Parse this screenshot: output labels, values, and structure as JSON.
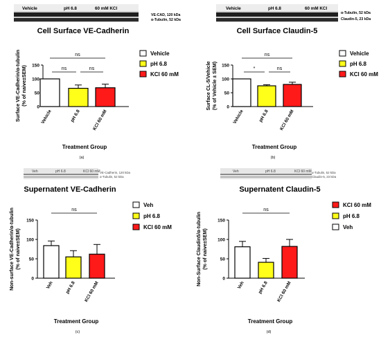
{
  "colors": {
    "vehicle": "#ffffff",
    "ph": "#ffff1a",
    "kcl": "#ff1a1a"
  },
  "chart_data": [
    {
      "type": "bar",
      "panel": "(a)",
      "title": "Cell Surface VE-Cadherin",
      "ylabel_line1": "Surface VE-Cadherin/α-tubulin",
      "ylabel_line2": "(% of naive±SEM)",
      "xlabel": "Treatment Group",
      "categories": [
        "Vehicle",
        "pH 6.8",
        "KCl 60 mM"
      ],
      "values": [
        100,
        66,
        68
      ],
      "errors": [
        0,
        12,
        13
      ],
      "color_keys": [
        "vehicle",
        "ph",
        "kcl"
      ],
      "ylim": [
        0,
        150
      ],
      "yticks": [
        "0",
        "50",
        "100",
        "150"
      ],
      "legend": [
        "Vehicle",
        "pH 6.8",
        "KCl 60 mM"
      ],
      "legend_keys": [
        "vehicle",
        "ph",
        "kcl"
      ],
      "sig": [
        {
          "from": 0,
          "to": 2,
          "label": "ns",
          "level": 0
        },
        {
          "from": 0,
          "to": 1,
          "label": "ns",
          "level": 1
        },
        {
          "from": 1,
          "to": 2,
          "label": "ns",
          "level": 1
        }
      ],
      "blot_labels": [
        "Vehicle",
        "pH 6.8",
        "60 mM KCl"
      ],
      "blot_side": [
        "VE-CAD, 120 kDa",
        "α-Tubulin, 52 kDa"
      ]
    },
    {
      "type": "bar",
      "panel": "(b)",
      "title": "Cell Surface Claudin-5",
      "ylabel_line1": "Surface CL-5/Vehicle",
      "ylabel_line2": "(% of Vehicle ± SEM)",
      "xlabel": "Treatment Group",
      "categories": [
        "Vehicle",
        "pH 6.8",
        "KCl 60 mM"
      ],
      "values": [
        100,
        75,
        80
      ],
      "errors": [
        0,
        4,
        8
      ],
      "color_keys": [
        "vehicle",
        "ph",
        "kcl"
      ],
      "ylim": [
        0,
        150
      ],
      "yticks": [
        "0",
        "50",
        "100",
        "150"
      ],
      "legend": [
        "Vehicle",
        "pH 6.8",
        "KCl 60 mM"
      ],
      "legend_keys": [
        "vehicle",
        "ph",
        "kcl"
      ],
      "sig": [
        {
          "from": 0,
          "to": 2,
          "label": "ns",
          "level": 0
        },
        {
          "from": 0,
          "to": 1,
          "label": "*",
          "level": 1
        },
        {
          "from": 1,
          "to": 2,
          "label": "ns",
          "level": 1
        }
      ],
      "blot_labels": [
        "Vehicle",
        "pH 6.8",
        "60 mM KCl"
      ],
      "blot_side": [
        "α-Tubulin, 52 kDa",
        "Claudin-5, 23 kDa"
      ]
    },
    {
      "type": "bar",
      "panel": "(c)",
      "title": "Supernatent VE-Cadherin",
      "ylabel_line1": "Non-surface VE-Cadherin/α-tubulin",
      "ylabel_line2": "(% of naive±SEM)",
      "xlabel": "Treatment Group",
      "categories": [
        "Veh",
        "pH 6.8",
        "KCl 60 mM"
      ],
      "values": [
        84,
        55,
        62
      ],
      "errors": [
        12,
        16,
        25
      ],
      "color_keys": [
        "vehicle",
        "ph",
        "kcl"
      ],
      "ylim": [
        0,
        150
      ],
      "yticks": [
        "0",
        "50",
        "100",
        "150"
      ],
      "legend": [
        "Veh",
        "pH 6.8",
        "KCl 60 mM"
      ],
      "legend_keys": [
        "vehicle",
        "ph",
        "kcl"
      ],
      "sig": [
        {
          "from": 0,
          "to": 2,
          "label": "ns",
          "level": 0
        }
      ],
      "blot_labels": [
        "Veh",
        "pH 6.8",
        "KCl 60 mM"
      ],
      "blot_side": [
        "VE-Cadherin, 120 kDa",
        "α-Tubulin, 52 kDa"
      ]
    },
    {
      "type": "bar",
      "panel": "(d)",
      "title": "Supernatent Claudin-5",
      "ylabel_line1": "Non-Surface Claudin5/α-tubulin",
      "ylabel_line2": "(% of naive±SEM)",
      "xlabel": "Treatment Group",
      "categories": [
        "Veh",
        "pH 6.8",
        "KCl 60 mM"
      ],
      "values": [
        81,
        41,
        82
      ],
      "errors": [
        14,
        10,
        18
      ],
      "color_keys": [
        "vehicle",
        "ph",
        "kcl"
      ],
      "ylim": [
        0,
        150
      ],
      "yticks": [
        "0",
        "50",
        "100",
        "150"
      ],
      "legend": [
        "KCl 60 mM",
        "pH 6.8",
        "Veh"
      ],
      "legend_keys": [
        "kcl",
        "ph",
        "vehicle"
      ],
      "sig": [
        {
          "from": 0,
          "to": 2,
          "label": "ns",
          "level": 0
        }
      ],
      "blot_labels": [
        "Veh",
        "pH 6.8",
        "KCl 60 mM"
      ],
      "blot_side": [
        "α-Tubulin, 52 kDa",
        "Claudin-5, 23 kDa"
      ]
    }
  ]
}
